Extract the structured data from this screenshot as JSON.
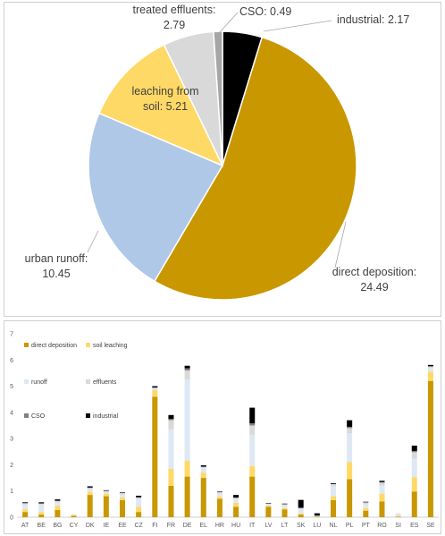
{
  "chart_data": [
    {
      "type": "pie",
      "slices": [
        {
          "name": "industrial",
          "value": 2.17,
          "label": "industrial: 2.17",
          "color": "#000000"
        },
        {
          "name": "direct deposition",
          "value": 24.49,
          "label_line1": "direct deposition:",
          "label_line2": "24.49",
          "color": "#C99700"
        },
        {
          "name": "urban runoff",
          "value": 10.45,
          "label_line1": "urban runoff:",
          "label_line2": "10.45",
          "color": "#AFC8E8"
        },
        {
          "name": "leaching from soil",
          "value": 5.21,
          "label_line1": "leaching from",
          "label_line2": "soil: 5.21",
          "color": "#FFD966"
        },
        {
          "name": "treated effluents",
          "value": 2.79,
          "label_line1": "treated effluents:",
          "label_line2": "2.79",
          "color": "#D9D9D9"
        },
        {
          "name": "CSO",
          "value": 0.49,
          "label": "CSO: 0.49",
          "color": "#A6A6A6"
        }
      ]
    },
    {
      "type": "bar",
      "stacked": true,
      "categories": [
        "AT",
        "BE",
        "BG",
        "CY",
        "DK",
        "IE",
        "EE",
        "CZ",
        "FI",
        "FR",
        "DE",
        "EL",
        "HR",
        "HU",
        "IT",
        "LV",
        "LT",
        "SK",
        "LU",
        "NL",
        "PL",
        "PT",
        "RO",
        "SI",
        "ES",
        "SE"
      ],
      "ylim": [
        0,
        7
      ],
      "yticks": [
        "0",
        "1",
        "2",
        "3",
        "4",
        "5",
        "6",
        "7"
      ],
      "grid": false,
      "legend_position": "top-left",
      "series": [
        {
          "name": "direct deposition",
          "color": "#C99700",
          "values": [
            0.2,
            0.1,
            0.28,
            0.05,
            0.85,
            0.8,
            0.65,
            0.2,
            4.6,
            1.2,
            1.55,
            1.5,
            0.7,
            0.4,
            1.55,
            0.4,
            0.3,
            0.1,
            0.02,
            0.65,
            1.45,
            0.25,
            0.6,
            0.02,
            0.98,
            5.2
          ]
        },
        {
          "name": "soil leaching",
          "color": "#FFD966",
          "values": [
            0.1,
            0.1,
            0.17,
            0.03,
            0.12,
            0.1,
            0.1,
            0.2,
            0.25,
            0.65,
            0.6,
            0.2,
            0.08,
            0.15,
            0.4,
            0.04,
            0.05,
            0.05,
            0.01,
            0.15,
            0.65,
            0.1,
            0.3,
            0.03,
            0.55,
            0.35
          ]
        },
        {
          "name": "runoff",
          "color": "#DEE8F5",
          "values": [
            0.18,
            0.26,
            0.12,
            0.02,
            0.1,
            0.06,
            0.12,
            0.3,
            0.05,
            1.5,
            3.1,
            0.18,
            0.12,
            0.14,
            1.2,
            0.06,
            0.1,
            0.15,
            0.02,
            0.38,
            1.1,
            0.15,
            0.3,
            0.08,
            0.7,
            0.15
          ]
        },
        {
          "name": "effluents",
          "color": "#D9D9D9",
          "values": [
            0.05,
            0.06,
            0.05,
            0.01,
            0.05,
            0.04,
            0.05,
            0.05,
            0.04,
            0.35,
            0.35,
            0.04,
            0.05,
            0.05,
            0.35,
            0.02,
            0.04,
            0.05,
            0.01,
            0.08,
            0.2,
            0.06,
            0.12,
            0.02,
            0.25,
            0.05
          ]
        },
        {
          "name": "CSO",
          "color": "#808080",
          "values": [
            0.01,
            0.01,
            0.01,
            0.0,
            0.01,
            0.01,
            0.01,
            0.01,
            0.01,
            0.05,
            0.08,
            0.01,
            0.01,
            0.01,
            0.08,
            0.0,
            0.01,
            0.01,
            0.0,
            0.01,
            0.05,
            0.01,
            0.02,
            0.0,
            0.05,
            0.01
          ]
        },
        {
          "name": "industrial",
          "color": "#000000",
          "values": [
            0.03,
            0.04,
            0.05,
            0.0,
            0.05,
            0.02,
            0.02,
            0.06,
            0.05,
            0.15,
            0.1,
            0.05,
            0.02,
            0.1,
            0.6,
            0.02,
            0.02,
            0.3,
            0.09,
            0.03,
            0.25,
            0.02,
            0.05,
            0.0,
            0.2,
            0.05
          ]
        }
      ]
    }
  ]
}
